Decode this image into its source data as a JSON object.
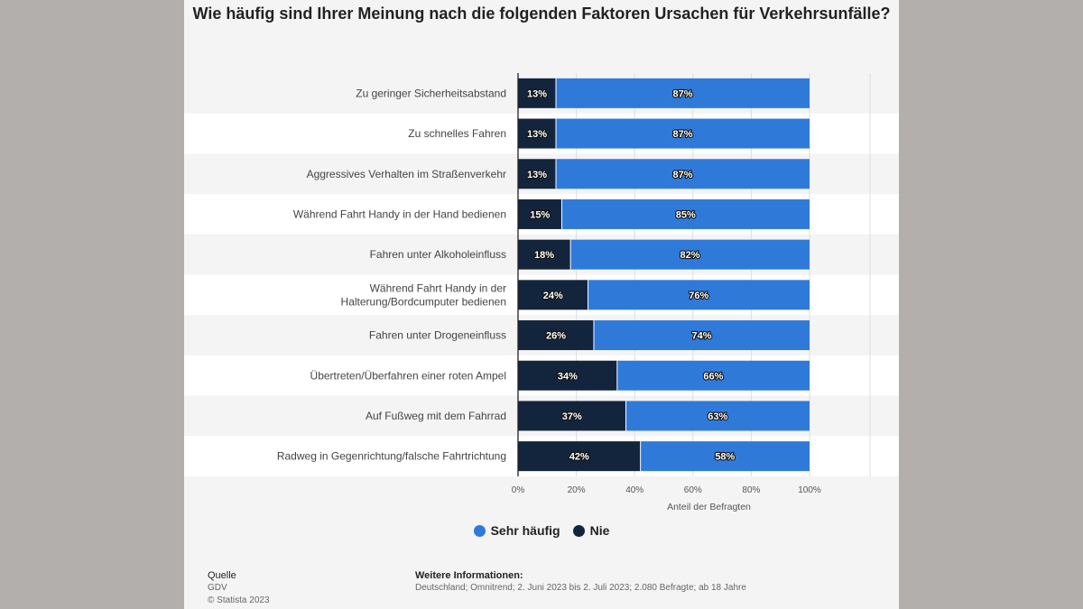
{
  "chart_data": {
    "type": "bar",
    "orientation": "horizontal",
    "stacked": true,
    "title": "Wie häufig sind Ihrer Meinung nach die folgenden Faktoren Ursachen für Verkehrsunfälle?",
    "categories": [
      "Zu geringer Sicherheitsabstand",
      "Zu schnelles Fahren",
      "Aggressives Verhalten im Straßenverkehr",
      "Während Fahrt Handy in der Hand bedienen",
      "Fahren unter Alkoholeinfluss",
      "Während Fahrt Handy in der Halterung/Bordcumputer bedienen",
      "Fahren unter Drogeneinfluss",
      "Übertreten/Überfahren einer roten Ampel",
      "Auf Fußweg mit dem Fahrrad",
      "Radweg in Gegenrichtung/falsche Fahrtrichtung"
    ],
    "category_lines": [
      [
        "Zu geringer Sicherheitsabstand"
      ],
      [
        "Zu schnelles Fahren"
      ],
      [
        "Aggressives Verhalten im Straßenverkehr"
      ],
      [
        "Während Fahrt Handy in der Hand bedienen"
      ],
      [
        "Fahren unter Alkoholeinfluss"
      ],
      [
        "Während Fahrt Handy in der",
        "Halterung/Bordcumputer bedienen"
      ],
      [
        "Fahren unter Drogeneinfluss"
      ],
      [
        "Übertreten/Überfahren einer roten Ampel"
      ],
      [
        "Auf Fußweg mit dem Fahrrad"
      ],
      [
        "Radweg in Gegenrichtung/falsche Fahrtrichtung"
      ]
    ],
    "series": [
      {
        "name": "Nie",
        "color": "#13243d",
        "values": [
          13,
          13,
          13,
          15,
          18,
          24,
          26,
          34,
          37,
          42
        ]
      },
      {
        "name": "Sehr häufig",
        "color": "#2f7ad9",
        "values": [
          87,
          87,
          87,
          85,
          82,
          76,
          74,
          66,
          63,
          58
        ]
      }
    ],
    "value_suffix": "%",
    "xlabel": "Anteil der Befragten",
    "xlim": [
      0,
      100
    ],
    "xticks": [
      "0%",
      "20%",
      "40%",
      "60%",
      "80%",
      "100%"
    ],
    "legend": [
      {
        "name": "Sehr häufig",
        "color": "#2f7ad9"
      },
      {
        "name": "Nie",
        "color": "#13243d"
      }
    ],
    "legend_position": "bottom"
  },
  "footer": {
    "source_heading": "Quelle",
    "source_name": "GDV",
    "copyright": "© Statista 2023",
    "info_heading": "Weitere Informationen:",
    "info_text": "Deutschland; Omnitrend; 2. Juni 2023 bis 2. Juli 2023; 2.080 Befragte; ab 18 Jahre"
  }
}
